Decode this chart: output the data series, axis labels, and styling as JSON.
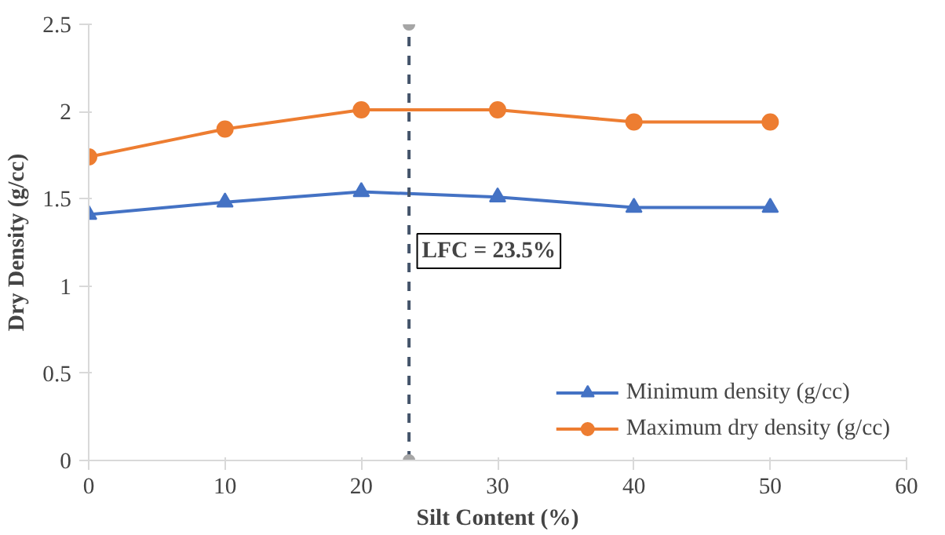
{
  "chart_data": {
    "type": "line",
    "xlabel": "Silt Content (%)",
    "ylabel": "Dry Density (g/cc)",
    "x": [
      0,
      10,
      20,
      30,
      40,
      50
    ],
    "series": [
      {
        "name": "Minimum density (g/cc)",
        "color": "#4472c4",
        "marker": "triangle",
        "values": [
          1.41,
          1.48,
          1.54,
          1.51,
          1.45,
          1.45
        ]
      },
      {
        "name": "Maximum dry density (g/cc)",
        "color": "#ed7d31",
        "marker": "circle",
        "values": [
          1.74,
          1.9,
          2.01,
          2.01,
          1.94,
          1.94
        ]
      },
      {
        "color": "#44546a",
        "colors": [
          "#a6a6a6",
          "#a6a6a6"
        ],
        "marker": "circle",
        "line_style": "dashed",
        "x": [
          23.5,
          23.5
        ],
        "values": [
          0,
          2.5
        ]
      }
    ],
    "annotations": [
      {
        "text": "LFC = 23.5%",
        "x": 23.5,
        "y": 1.2
      }
    ],
    "xlim": [
      0,
      60
    ],
    "xticks": [
      0,
      10,
      20,
      30,
      40,
      50,
      60
    ],
    "ylim": [
      0,
      2.5
    ],
    "yticks": [
      0,
      0.5,
      1,
      1.5,
      2,
      2.5
    ],
    "grid": false,
    "legend": "bottom right",
    "line_style": "solid"
  }
}
